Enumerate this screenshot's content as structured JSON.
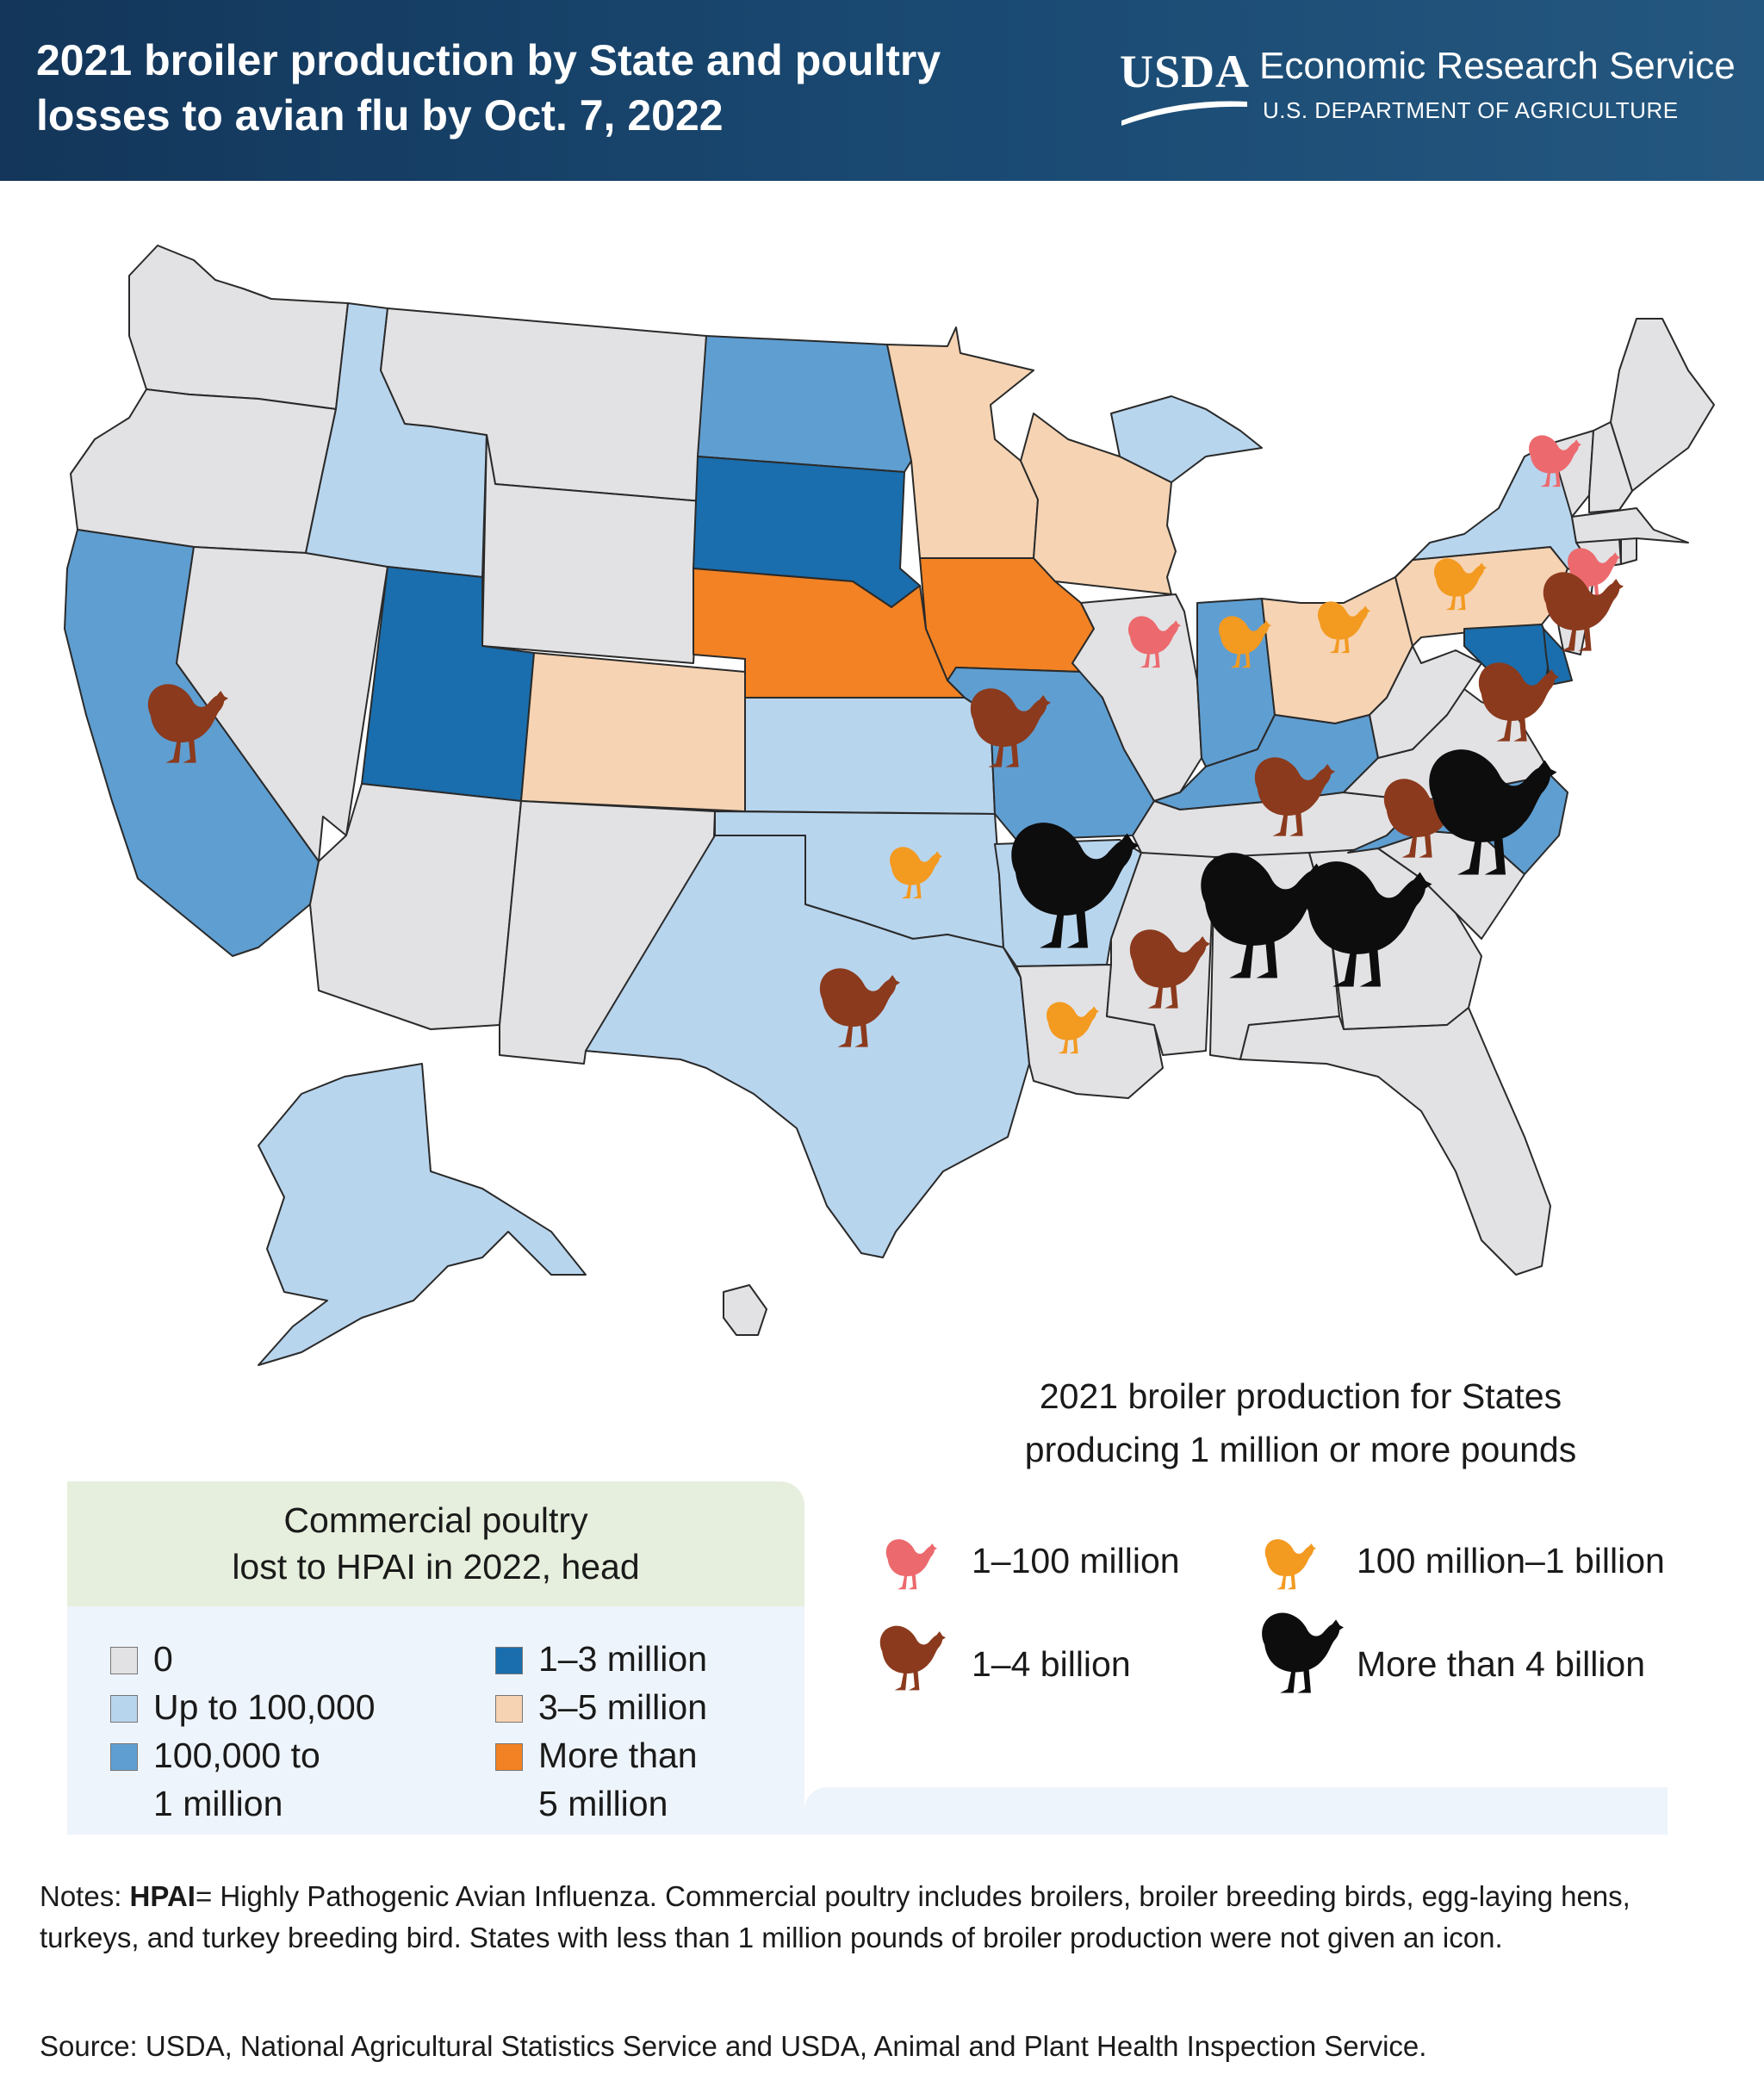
{
  "header": {
    "title_line1": "2021 broiler production by State and poultry",
    "title_line2": "losses to avian flu by Oct. 7, 2022",
    "logo_mark": "USDA",
    "agency": "Economic Research Service",
    "department": "U.S. DEPARTMENT OF AGRICULTURE"
  },
  "losses_legend": {
    "title_line1": "Commercial poultry",
    "title_line2": "lost to HPAI in 2022, head",
    "classes": [
      {
        "key": "zero",
        "label": "0",
        "color": "#e2e2e4"
      },
      {
        "key": "lt100k",
        "label": "Up to 100,000",
        "color": "#b8d5ee"
      },
      {
        "key": "100k_1m",
        "label_line1": "100,000 to",
        "label_line2": "1 million",
        "color": "#5f9ed1"
      },
      {
        "key": "1_3m",
        "label": "1–3 million",
        "color": "#1a6ead"
      },
      {
        "key": "3_5m",
        "label": "3–5 million",
        "color": "#f6d3b2"
      },
      {
        "key": "gt5m",
        "label_line1": "More than",
        "label_line2": "5 million",
        "color": "#f28223"
      }
    ]
  },
  "production_legend": {
    "title_line1": "2021 broiler production for States",
    "title_line2": "producing 1 million or more pounds",
    "classes": [
      {
        "key": "1_100m",
        "label": "1–100 million",
        "color": "#ec6a6e",
        "icon": "chicken-icon"
      },
      {
        "key": "100m_1b",
        "label": "100 million–1 billion",
        "color": "#f39a21",
        "icon": "chicken-icon"
      },
      {
        "key": "1_4b",
        "label": "1–4 billion",
        "color": "#8b3a1d",
        "icon": "chicken-icon"
      },
      {
        "key": "gt4b",
        "label": "More than 4 billion",
        "color": "#0d0d0d",
        "icon": "chicken-icon"
      }
    ]
  },
  "map_data": {
    "state_losses": {
      "WA": "zero",
      "OR": "zero",
      "CA": "100k_1m",
      "NV": "zero",
      "ID": "lt100k",
      "MT": "zero",
      "WY": "zero",
      "UT": "1_3m",
      "CO": "3_5m",
      "AZ": "zero",
      "NM": "zero",
      "ND": "100k_1m",
      "SD": "1_3m",
      "NE": "gt5m",
      "KS": "lt100k",
      "OK": "lt100k",
      "TX": "lt100k",
      "MN": "3_5m",
      "IA": "gt5m",
      "MO": "100k_1m",
      "AR": "lt100k",
      "LA": "zero",
      "WI": "3_5m",
      "IL": "zero",
      "MI": "lt100k",
      "IN": "100k_1m",
      "OH": "3_5m",
      "KY": "100k_1m",
      "TN": "zero",
      "MS": "zero",
      "AL": "zero",
      "GA": "zero",
      "FL": "zero",
      "SC": "zero",
      "NC": "100k_1m",
      "VA": "zero",
      "WV": "zero",
      "PA": "3_5m",
      "NY": "lt100k",
      "NJ": "zero",
      "DE": "1_3m",
      "MD": "1_3m",
      "CT": "zero",
      "RI": "zero",
      "MA": "zero",
      "VT": "zero",
      "NH": "zero",
      "ME": "zero",
      "AK": "lt100k",
      "HI": "zero"
    },
    "state_production": {
      "NY": "1_100m",
      "IL": "1_100m",
      "NJ": "1_100m",
      "OK": "100m_1b",
      "LA": "100m_1b",
      "IN": "100m_1b",
      "OH": "100m_1b",
      "PA": "100m_1b",
      "CA": "1_4b",
      "TX": "1_4b",
      "MO": "1_4b",
      "KY": "1_4b",
      "MS": "1_4b",
      "TN": "1_4b",
      "MD": "1_4b",
      "VA": "1_4b",
      "DE": "1_4b",
      "AR": "gt4b",
      "AL": "gt4b",
      "GA": "gt4b",
      "NC": "gt4b"
    }
  },
  "notes": {
    "prefix": "Notes: ",
    "term": "HPAI",
    "text": "= Highly Pathogenic Avian Influenza. Commercial poultry includes broilers, broiler breeding birds, egg-laying hens, turkeys, and turkey breeding bird. States with less than 1 million pounds of broiler production were not given an icon."
  },
  "source": "Source: USDA, National Agricultural Statistics Service and USDA, Animal and Plant Health Inspection Service."
}
